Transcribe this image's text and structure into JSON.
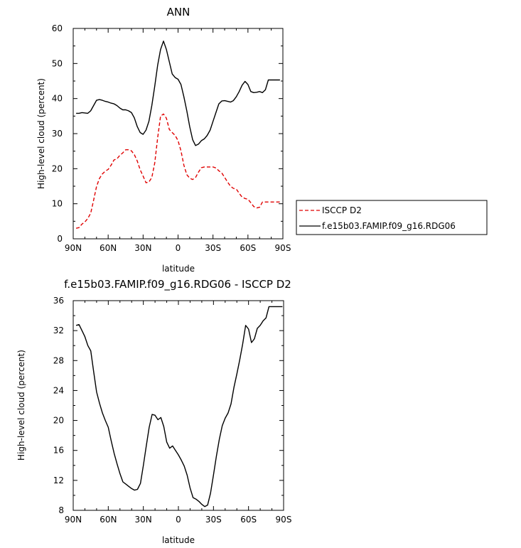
{
  "chart_data": [
    {
      "type": "line",
      "title": "ANN",
      "xlabel": "latitude",
      "ylabel": "High-level cloud (percent)",
      "xlim": [
        -90,
        90
      ],
      "ylim": [
        0,
        60
      ],
      "x_ticks": [
        -90,
        -60,
        -30,
        0,
        30,
        60,
        90
      ],
      "x_tick_labels": [
        "90N",
        "60N",
        "30N",
        "0",
        "30S",
        "60S",
        "90S"
      ],
      "y_ticks": [
        0,
        10,
        20,
        30,
        40,
        50,
        60
      ],
      "y_tick_labels": [
        "0",
        "10",
        "20",
        "30",
        "40",
        "50",
        "60"
      ],
      "legend_position": "right",
      "series": [
        {
          "name": "ISCCP D2",
          "color": "#e00000",
          "dash": "dashed",
          "x": [
            -87.5,
            -85,
            -82.5,
            -80,
            -77.5,
            -75,
            -72.5,
            -70,
            -67.5,
            -65,
            -62.5,
            -60,
            -57.5,
            -55,
            -52.5,
            -50,
            -47.5,
            -45,
            -42.5,
            -40,
            -37.5,
            -35,
            -32.5,
            -30,
            -27.5,
            -25,
            -22.5,
            -20,
            -17.5,
            -15,
            -12.5,
            -10,
            -7.5,
            -5,
            -2.5,
            0,
            2.5,
            5,
            7.5,
            10,
            12.5,
            15,
            17.5,
            20,
            22.5,
            25,
            27.5,
            30,
            32.5,
            35,
            37.5,
            40,
            42.5,
            45,
            47.5,
            50,
            52.5,
            55,
            57.5,
            60,
            62.5,
            65,
            67.5,
            70,
            72.5,
            75,
            77.5,
            80,
            82.5,
            85,
            87.5
          ],
          "y": [
            3.0,
            3.2,
            4.2,
            4.8,
            5.8,
            7.3,
            11.0,
            14.9,
            17.2,
            18.5,
            19.3,
            19.8,
            21.0,
            22.5,
            22.8,
            23.8,
            24.5,
            25.4,
            25.4,
            25.1,
            24.0,
            22.2,
            19.7,
            17.9,
            16.0,
            16.2,
            17.5,
            21.6,
            28.8,
            35.0,
            35.6,
            34.4,
            31.2,
            30.3,
            29.5,
            28.0,
            25.1,
            21.0,
            18.3,
            17.3,
            16.9,
            17.5,
            19.0,
            20.3,
            20.5,
            20.5,
            20.5,
            20.5,
            20.2,
            19.4,
            18.8,
            17.5,
            16.2,
            15.0,
            14.4,
            14.2,
            13.0,
            11.9,
            11.5,
            11.3,
            10.3,
            9.2,
            8.8,
            9.0,
            10.5,
            10.5,
            10.5,
            10.5,
            10.5,
            10.5,
            10.5
          ]
        },
        {
          "name": "f.e15b03.FAMIP.f09_g16.RDG06",
          "color": "#000000",
          "dash": "solid",
          "x": [
            -87.5,
            -85,
            -82.5,
            -80,
            -77.5,
            -75,
            -72.5,
            -70,
            -67.5,
            -65,
            -62.5,
            -60,
            -57.5,
            -55,
            -52.5,
            -50,
            -47.5,
            -45,
            -42.5,
            -40,
            -37.5,
            -35,
            -32.5,
            -30,
            -27.5,
            -25,
            -22.5,
            -20,
            -17.5,
            -15,
            -12.5,
            -10,
            -7.5,
            -5,
            -2.5,
            0,
            2.5,
            5,
            7.5,
            10,
            12.5,
            15,
            17.5,
            20,
            22.5,
            25,
            27.5,
            30,
            32.5,
            35,
            37.5,
            40,
            42.5,
            45,
            47.5,
            50,
            52.5,
            55,
            57.5,
            60,
            62.5,
            65,
            67.5,
            70,
            72.5,
            75,
            77.5,
            80,
            82.5,
            85,
            87.5
          ],
          "y": [
            35.8,
            35.8,
            36.0,
            35.9,
            35.8,
            36.5,
            38.0,
            39.5,
            39.7,
            39.5,
            39.2,
            39.0,
            38.7,
            38.5,
            38.0,
            37.3,
            36.8,
            36.8,
            36.5,
            36.0,
            34.5,
            32.0,
            30.3,
            29.8,
            31.0,
            33.5,
            38.0,
            43.5,
            49.5,
            54.0,
            56.4,
            54.0,
            50.5,
            47.0,
            46.0,
            45.5,
            44.0,
            40.5,
            36.5,
            32.0,
            28.3,
            26.6,
            27.0,
            28.0,
            28.5,
            29.5,
            31.0,
            33.5,
            36.0,
            38.5,
            39.3,
            39.4,
            39.2,
            39.0,
            39.4,
            40.5,
            42.0,
            43.8,
            44.9,
            44.0,
            42.0,
            41.7,
            41.8,
            42.0,
            41.7,
            42.5,
            45.3,
            45.3,
            45.3,
            45.3,
            45.3
          ]
        }
      ]
    },
    {
      "type": "line",
      "title": "f.e15b03.FAMIP.f09_g16.RDG06 - ISCCP D2",
      "xlabel": "latitude",
      "ylabel": "High-level cloud (percent)",
      "xlim": [
        -90,
        90
      ],
      "ylim": [
        8,
        36
      ],
      "x_ticks": [
        -90,
        -60,
        -30,
        0,
        30,
        60,
        90
      ],
      "x_tick_labels": [
        "90N",
        "60N",
        "30N",
        "0",
        "30S",
        "60S",
        "90S"
      ],
      "y_ticks": [
        8,
        12,
        16,
        20,
        24,
        28,
        32,
        36
      ],
      "y_tick_labels": [
        "8",
        "12",
        "16",
        "20",
        "24",
        "28",
        "32",
        "36"
      ],
      "series": [
        {
          "color": "#000000",
          "dash": "solid",
          "x": [
            -87.5,
            -85,
            -82.5,
            -80,
            -77.5,
            -75,
            -72.5,
            -70,
            -67.5,
            -65,
            -62.5,
            -60,
            -57.5,
            -55,
            -52.5,
            -50,
            -47.5,
            -45,
            -42.5,
            -40,
            -37.5,
            -35,
            -32.5,
            -30,
            -27.5,
            -25,
            -22.5,
            -20,
            -17.5,
            -15,
            -12.5,
            -10,
            -7.5,
            -5,
            -2.5,
            0,
            2.5,
            5,
            7.5,
            10,
            12.5,
            15,
            17.5,
            20,
            22.5,
            25,
            27.5,
            30,
            32.5,
            35,
            37.5,
            40,
            42.5,
            45,
            47.5,
            50,
            52.5,
            55,
            57.5,
            60,
            62.5,
            65,
            67.5,
            70,
            72.5,
            75,
            77.5,
            80,
            82.5,
            85,
            87.5,
            89
          ],
          "y": [
            32.7,
            32.8,
            32.0,
            31.2,
            30.0,
            29.3,
            26.5,
            23.8,
            22.3,
            21.0,
            20.0,
            19.1,
            17.3,
            15.6,
            14.2,
            12.9,
            11.8,
            11.5,
            11.2,
            10.9,
            10.7,
            10.8,
            11.6,
            14.0,
            16.6,
            19.1,
            20.8,
            20.7,
            20.1,
            20.4,
            19.2,
            17.1,
            16.3,
            16.6,
            16.0,
            15.4,
            14.7,
            13.9,
            12.7,
            11.0,
            9.7,
            9.5,
            9.2,
            8.8,
            8.5,
            8.7,
            10.3,
            12.7,
            15.2,
            17.5,
            19.3,
            20.3,
            21.0,
            22.2,
            24.4,
            26.2,
            28.1,
            30.2,
            32.7,
            32.2,
            30.4,
            30.9,
            32.3,
            32.7,
            33.3,
            33.7,
            35.2,
            35.2,
            35.2,
            35.2,
            35.2,
            35.2
          ]
        }
      ]
    }
  ]
}
